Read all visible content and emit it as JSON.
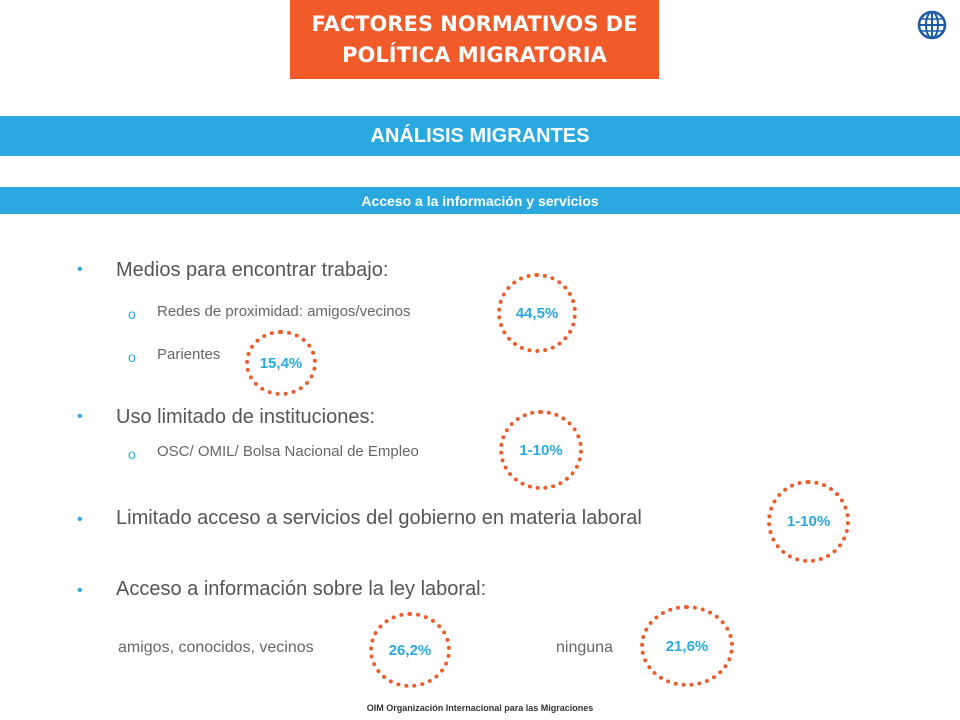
{
  "header": {
    "title_line1": "FACTORES NORMATIVOS DE",
    "title_line2": "POLÍTICA MIGRATORIA"
  },
  "logo": {
    "icon": "globe-icon",
    "color": "#1f5aa6"
  },
  "band_main": "ANÁLISIS MIGRANTES",
  "band_sub": "Acceso a la información y servicios",
  "bullets": [
    {
      "text": "Medios para encontrar trabajo:"
    },
    {
      "text": "Uso limitado de instituciones:"
    },
    {
      "text": "Limitado acceso a servicios del gobierno en materia laboral"
    },
    {
      "text": "Acceso a información sobre la ley laboral:"
    }
  ],
  "subitems": [
    {
      "text": "Redes de proximidad: amigos/vecinos"
    },
    {
      "text": "Parientes"
    },
    {
      "text": "OSC/ OMIL/ Bolsa Nacional de Empleo"
    }
  ],
  "bottom_items": {
    "left": "amigos, conocidos, vecinos",
    "right": "ninguna"
  },
  "circles": {
    "redes": "44,5%",
    "parientes": "15,4%",
    "osc": "1-10%",
    "gobierno": "1-10%",
    "amigos": "26,2%",
    "ninguna": "21,6%"
  },
  "colors": {
    "accent_orange": "#f15a29",
    "accent_blue": "#29a9e0"
  },
  "footer": "OIM Organización Internacional para las Migraciones"
}
